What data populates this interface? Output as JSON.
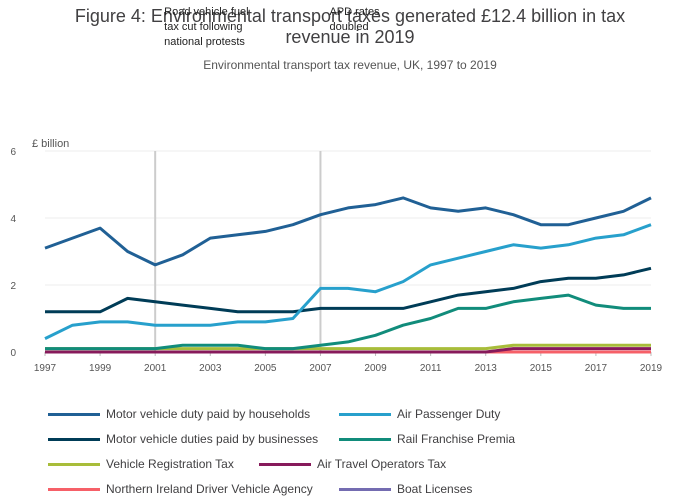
{
  "chart_data": {
    "type": "line",
    "title": "Figure 4: Environmental transport taxes generated £12.4 billion in tax revenue in 2019",
    "subtitle": "Environmental transport tax revenue, UK, 1997 to 2019",
    "ylabel": "£ billion",
    "xlabel": "",
    "ylim": [
      0,
      6
    ],
    "xlim": [
      1997,
      2019
    ],
    "yticks": [
      0,
      2,
      4,
      6
    ],
    "xticks": [
      1997,
      1999,
      2001,
      2003,
      2005,
      2007,
      2009,
      2011,
      2013,
      2015,
      2017,
      2019
    ],
    "x": [
      1997,
      1998,
      1999,
      2000,
      2001,
      2002,
      2003,
      2004,
      2005,
      2006,
      2007,
      2008,
      2009,
      2010,
      2011,
      2012,
      2013,
      2014,
      2015,
      2016,
      2017,
      2018,
      2019
    ],
    "series": [
      {
        "name": "Motor vehicle duty paid by households",
        "color": "#206095",
        "values": [
          3.1,
          3.4,
          3.7,
          3.0,
          2.6,
          2.9,
          3.4,
          3.5,
          3.6,
          3.8,
          4.1,
          4.3,
          4.4,
          4.6,
          4.3,
          4.2,
          4.3,
          4.1,
          3.8,
          3.8,
          4.0,
          4.2,
          4.6
        ]
      },
      {
        "name": "Air Passenger Duty",
        "color": "#27a0cc",
        "values": [
          0.4,
          0.8,
          0.9,
          0.9,
          0.8,
          0.8,
          0.8,
          0.9,
          0.9,
          1.0,
          1.9,
          1.9,
          1.8,
          2.1,
          2.6,
          2.8,
          3.0,
          3.2,
          3.1,
          3.2,
          3.4,
          3.5,
          3.8
        ]
      },
      {
        "name": "Motor vehicle duties paid by businesses",
        "color": "#003c57",
        "values": [
          1.2,
          1.2,
          1.2,
          1.6,
          1.5,
          1.4,
          1.3,
          1.2,
          1.2,
          1.2,
          1.3,
          1.3,
          1.3,
          1.3,
          1.5,
          1.7,
          1.8,
          1.9,
          2.1,
          2.2,
          2.2,
          2.3,
          2.5
        ]
      },
      {
        "name": "Rail Franchise Premia",
        "color": "#118c7b",
        "values": [
          0.1,
          0.1,
          0.1,
          0.1,
          0.1,
          0.2,
          0.2,
          0.2,
          0.1,
          0.1,
          0.2,
          0.3,
          0.5,
          0.8,
          1.0,
          1.3,
          1.3,
          1.5,
          1.6,
          1.7,
          1.4,
          1.3,
          1.3
        ]
      },
      {
        "name": "Vehicle Registration Tax",
        "color": "#a8bd3a",
        "values": [
          0.1,
          0.1,
          0.1,
          0.1,
          0.1,
          0.1,
          0.1,
          0.1,
          0.1,
          0.1,
          0.1,
          0.1,
          0.1,
          0.1,
          0.1,
          0.1,
          0.1,
          0.2,
          0.2,
          0.2,
          0.2,
          0.2,
          0.2
        ]
      },
      {
        "name": "Air Travel Operators Tax",
        "color": "#871a5b",
        "values": [
          0,
          0,
          0,
          0,
          0,
          0,
          0,
          0,
          0,
          0,
          0,
          0,
          0,
          0,
          0,
          0,
          0,
          0.1,
          0.1,
          0.1,
          0.1,
          0.1,
          0.1
        ]
      },
      {
        "name": "Northern Ireland Driver Vehicle Agency",
        "color": "#f66068",
        "values": [
          0,
          0,
          0,
          0,
          0,
          0,
          0,
          0,
          0,
          0,
          0,
          0,
          0,
          0,
          0,
          0,
          0,
          0,
          0,
          0,
          0,
          0,
          0
        ]
      },
      {
        "name": "Boat Licenses",
        "color": "#746cb1",
        "values": [
          0,
          0,
          0,
          0,
          0,
          0,
          0,
          0,
          0,
          0,
          0,
          0,
          0,
          0,
          0,
          0,
          0,
          0,
          0,
          0,
          0,
          0,
          0
        ]
      }
    ],
    "annotations": [
      {
        "x": 2001,
        "lines": [
          "Road vehicle fuel",
          "tax cut following",
          "national protests"
        ]
      },
      {
        "x": 2007,
        "lines": [
          "APD rates",
          "doubled"
        ]
      }
    ],
    "grid": true,
    "legend": "bottom"
  }
}
